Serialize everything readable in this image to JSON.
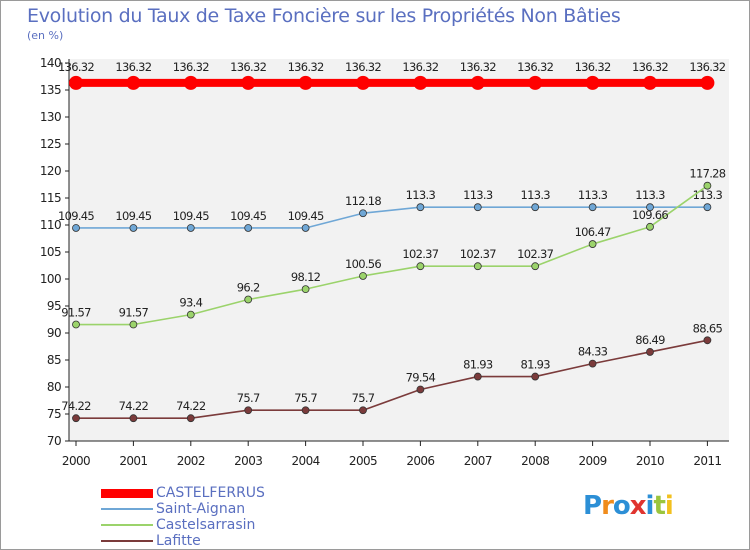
{
  "header": {
    "title": "Evolution du Taux de Taxe Foncière sur les Propriétés Non Bâties",
    "unit": "(en %)"
  },
  "chart_data": {
    "type": "line",
    "title": "Evolution du Taux de Taxe Foncière sur les Propriétés Non Bâties",
    "ylabel": "(en %)",
    "xlabel": "",
    "categories": [
      "2000",
      "2001",
      "2002",
      "2003",
      "2004",
      "2005",
      "2006",
      "2007",
      "2008",
      "2009",
      "2010",
      "2011"
    ],
    "ylim": [
      70,
      140
    ],
    "ytick_step": 5,
    "grid": false,
    "legend_position": "bottom-left",
    "series": [
      {
        "name": "CASTELFERRUS",
        "color": "#ff0000",
        "values": [
          136.32,
          136.32,
          136.32,
          136.32,
          136.32,
          136.32,
          136.32,
          136.32,
          136.32,
          136.32,
          136.32,
          136.32
        ],
        "labels": [
          "136.32",
          "136.32",
          "136.32",
          "136.32",
          "136.32",
          "136.32",
          "136.32",
          "136.32",
          "136.32",
          "136.32",
          "136.32",
          "136.32"
        ]
      },
      {
        "name": "Saint-Aignan",
        "color": "#6fa7d6",
        "values": [
          109.45,
          109.45,
          109.45,
          109.45,
          109.45,
          112.18,
          113.3,
          113.3,
          113.3,
          113.3,
          113.3,
          113.3
        ],
        "labels": [
          "109.45",
          "109.45",
          "109.45",
          "109.45",
          "109.45",
          "112.18",
          "113.3",
          "113.3",
          "113.3",
          "113.3",
          "113.3",
          "113.3"
        ]
      },
      {
        "name": "Castelsarrasin",
        "color": "#9bd36b",
        "values": [
          91.57,
          91.57,
          93.4,
          96.2,
          98.12,
          100.56,
          102.37,
          102.37,
          102.37,
          106.47,
          109.66,
          117.28
        ],
        "labels": [
          "91.57",
          "91.57",
          "93.4",
          "96.2",
          "98.12",
          "100.56",
          "102.37",
          "102.37",
          "102.37",
          "106.47",
          "109.66",
          "117.28"
        ]
      },
      {
        "name": "Lafitte",
        "color": "#7b3b3b",
        "values": [
          74.22,
          74.22,
          74.22,
          75.7,
          75.7,
          75.7,
          79.54,
          81.93,
          81.93,
          84.33,
          86.49,
          88.65
        ],
        "labels": [
          "74.22",
          "74.22",
          "74.22",
          "75.7",
          "75.7",
          "75.7",
          "79.54",
          "81.93",
          "81.93",
          "84.33",
          "86.49",
          "88.65"
        ]
      }
    ]
  },
  "brand": {
    "letters": [
      {
        "ch": "P",
        "color": "#2c8fd6"
      },
      {
        "ch": "r",
        "color": "#f08c1c"
      },
      {
        "ch": "o",
        "color": "#2c8fd6"
      },
      {
        "ch": "x",
        "color": "#e0342f"
      },
      {
        "ch": "i",
        "color": "#2c8fd6"
      },
      {
        "ch": "t",
        "color": "#9bc53d"
      },
      {
        "ch": "i",
        "color": "#f2c01e"
      }
    ]
  }
}
